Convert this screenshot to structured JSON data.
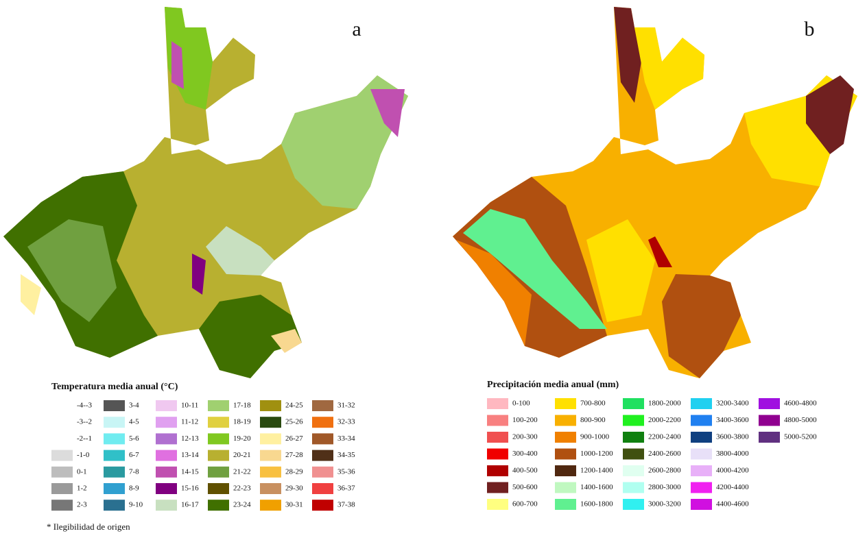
{
  "panels": [
    {
      "label": "a",
      "legend": {
        "title": "Temperatura media anual (°C)",
        "columns": [
          [
            {
              "label": "-4--3"
            },
            {
              "label": "-3--2"
            },
            {
              "label": "-2--1"
            },
            {
              "label": "-1-0",
              "color": "#dcdcdc"
            },
            {
              "label": "0-1",
              "color": "#bdbdbd"
            },
            {
              "label": "1-2",
              "color": "#9a9a9a"
            },
            {
              "label": "2-3",
              "color": "#777777"
            }
          ],
          [
            {
              "label": "3-4",
              "color": "#555555"
            },
            {
              "label": "4-5",
              "color": "#c8f5f5"
            },
            {
              "label": "5-6",
              "color": "#70ecf0"
            },
            {
              "label": "6-7",
              "color": "#30c0c8"
            },
            {
              "label": "7-8",
              "color": "#2a9aa0"
            },
            {
              "label": "8-9",
              "color": "#30a0d0"
            },
            {
              "label": "9-10",
              "color": "#2a7090"
            }
          ],
          [
            {
              "label": "10-11",
              "color": "#f0c8f0"
            },
            {
              "label": "11-12",
              "color": "#e0a0f0"
            },
            {
              "label": "12-13",
              "color": "#b070d0"
            },
            {
              "label": "13-14",
              "color": "#e070e0"
            },
            {
              "label": "14-15",
              "color": "#c050b0"
            },
            {
              "label": "15-16",
              "color": "#800080"
            },
            {
              "label": "16-17",
              "color": "#c8e0c0"
            }
          ],
          [
            {
              "label": "17-18",
              "color": "#a0d070"
            },
            {
              "label": "18-19",
              "color": "#e0d040"
            },
            {
              "label": "19-20",
              "color": "#80c820"
            },
            {
              "label": "20-21",
              "color": "#b8b030"
            },
            {
              "label": "21-22",
              "color": "#70a040"
            },
            {
              "label": "22-23",
              "color": "#605000"
            },
            {
              "label": "23-24",
              "color": "#407000"
            }
          ],
          [
            {
              "label": "24-25",
              "color": "#a09010"
            },
            {
              "label": "25-26",
              "color": "#2a4a10"
            },
            {
              "label": "26-27",
              "color": "#fff0a0"
            },
            {
              "label": "27-28",
              "color": "#f8d890"
            },
            {
              "label": "28-29",
              "color": "#f8c040"
            },
            {
              "label": "29-30",
              "color": "#c89060"
            },
            {
              "label": "30-31",
              "color": "#f0a000"
            }
          ],
          [
            {
              "label": "31-32",
              "color": "#a06840"
            },
            {
              "label": "32-33",
              "color": "#f07010"
            },
            {
              "label": "33-34",
              "color": "#a05828"
            },
            {
              "label": "34-35",
              "color": "#503018"
            },
            {
              "label": "35-36",
              "color": "#f09090"
            },
            {
              "label": "36-37",
              "color": "#f04040"
            },
            {
              "label": "37-38",
              "color": "#c00000"
            }
          ]
        ]
      }
    },
    {
      "label": "b",
      "legend": {
        "title": "Precipitación media anual (mm)",
        "columns": [
          [
            {
              "label": "0-100",
              "color": "#ffb8c0"
            },
            {
              "label": "100-200",
              "color": "#f88080"
            },
            {
              "label": "200-300",
              "color": "#f05050"
            },
            {
              "label": "300-400",
              "color": "#f00000"
            },
            {
              "label": "400-500",
              "color": "#b00000"
            },
            {
              "label": "500-600",
              "color": "#702020"
            },
            {
              "label": "600-700",
              "color": "#ffff80"
            }
          ],
          [
            {
              "label": "700-800",
              "color": "#ffe000"
            },
            {
              "label": "800-900",
              "color": "#f8b000"
            },
            {
              "label": "900-1000",
              "color": "#f08000"
            },
            {
              "label": "1000-1200",
              "color": "#b05010"
            },
            {
              "label": "1200-1400",
              "color": "#502810"
            },
            {
              "label": "1400-1600",
              "color": "#c0f8c0"
            },
            {
              "label": "1600-1800",
              "color": "#60f090"
            }
          ],
          [
            {
              "label": "1800-2000",
              "color": "#20e060"
            },
            {
              "label": "2000-2200",
              "color": "#20f020"
            },
            {
              "label": "2200-2400",
              "color": "#108010"
            },
            {
              "label": "2400-2600",
              "color": "#405010"
            },
            {
              "label": "2600-2800",
              "color": "#e0fff0"
            },
            {
              "label": "2800-3000",
              "color": "#b0fff0"
            },
            {
              "label": "3000-3200",
              "color": "#30f0f0"
            }
          ],
          [
            {
              "label": "3200-3400",
              "color": "#20d0f0"
            },
            {
              "label": "3400-3600",
              "color": "#2080f0"
            },
            {
              "label": "3600-3800",
              "color": "#104080"
            },
            {
              "label": "3800-4000",
              "color": "#e8e0f8"
            },
            {
              "label": "4000-4200",
              "color": "#e8b0f8"
            },
            {
              "label": "4200-4400",
              "color": "#f020f0"
            },
            {
              "label": "4400-4600",
              "color": "#d010e0"
            }
          ],
          [
            {
              "label": "4600-4800",
              "color": "#a010e0"
            },
            {
              "label": "4800-5000",
              "color": "#900090"
            },
            {
              "label": "5000-5200",
              "color": "#603080"
            }
          ]
        ]
      }
    }
  ],
  "footnote": "* Ilegibilidad de origen"
}
